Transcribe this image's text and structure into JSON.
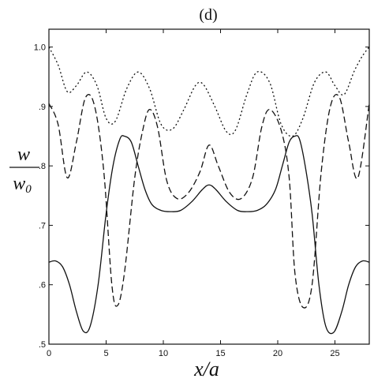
{
  "chart_data": {
    "type": "line",
    "title": "(d)",
    "xlabel": "x/a",
    "ylabel_numerator": "w",
    "ylabel_denominator": "w0",
    "xlim": [
      0,
      28
    ],
    "ylim": [
      0.5,
      1.03
    ],
    "grid": false,
    "legend": "none",
    "x_ticks": [
      0,
      5,
      10,
      15,
      20,
      25
    ],
    "x_tick_labels": [
      "0",
      "5",
      "10",
      "15",
      "20",
      "25"
    ],
    "y_ticks": [
      0.5,
      0.6,
      0.7,
      0.8,
      0.9,
      1.0
    ],
    "y_tick_labels": [
      ".5",
      ".6",
      ".7",
      ".8",
      ".9",
      "1.0"
    ],
    "series": [
      {
        "style": "dotted",
        "x": [
          0,
          0.8,
          1.6,
          2.4,
          3.3,
          4.2,
          5.0,
          5.8,
          6.8,
          7.8,
          8.8,
          9.8,
          10.8,
          11.8,
          12.8,
          13.5,
          14.5,
          15.5,
          16.3,
          17.3,
          18.2,
          19.3,
          20.3,
          21.3,
          22.2,
          23.2,
          24.2,
          25.0,
          25.8,
          26.7,
          27.4,
          28.0
        ],
        "y": [
          1.0,
          0.97,
          0.925,
          0.935,
          0.958,
          0.935,
          0.88,
          0.875,
          0.93,
          0.958,
          0.93,
          0.87,
          0.862,
          0.895,
          0.935,
          0.937,
          0.9,
          0.858,
          0.86,
          0.92,
          0.958,
          0.94,
          0.87,
          0.85,
          0.88,
          0.94,
          0.958,
          0.935,
          0.92,
          0.96,
          0.985,
          1.0
        ]
      },
      {
        "style": "dashed",
        "x": [
          0,
          0.8,
          1.6,
          2.4,
          3.2,
          4.0,
          4.8,
          5.5,
          6.0,
          6.6,
          7.5,
          8.2,
          8.8,
          9.5,
          10.3,
          11.2,
          12.2,
          13.2,
          14.0,
          14.8,
          15.8,
          16.8,
          17.8,
          18.6,
          19.3,
          20.3,
          21.0,
          21.5,
          22.2,
          23.0,
          23.8,
          24.6,
          25.4,
          26.2,
          27.0,
          28.0
        ],
        "y": [
          0.905,
          0.87,
          0.78,
          0.84,
          0.915,
          0.9,
          0.79,
          0.6,
          0.565,
          0.62,
          0.78,
          0.86,
          0.895,
          0.865,
          0.775,
          0.745,
          0.755,
          0.79,
          0.835,
          0.8,
          0.755,
          0.745,
          0.78,
          0.865,
          0.895,
          0.86,
          0.78,
          0.62,
          0.562,
          0.6,
          0.79,
          0.9,
          0.915,
          0.84,
          0.78,
          0.905
        ]
      },
      {
        "style": "solid",
        "x": [
          0,
          0.6,
          1.2,
          1.8,
          2.4,
          3.0,
          3.6,
          4.3,
          5.0,
          5.6,
          6.2,
          6.6,
          7.2,
          7.8,
          8.4,
          9.0,
          9.8,
          10.6,
          11.5,
          12.5,
          13.4,
          14.0,
          14.6,
          15.5,
          16.5,
          17.4,
          18.2,
          19.0,
          19.8,
          20.4,
          21.0,
          21.5,
          21.9,
          22.4,
          23.0,
          23.6,
          24.2,
          24.9,
          25.6,
          26.2,
          26.8,
          27.4,
          28.0
        ],
        "y": [
          0.638,
          0.64,
          0.63,
          0.6,
          0.555,
          0.522,
          0.53,
          0.6,
          0.72,
          0.8,
          0.845,
          0.85,
          0.84,
          0.8,
          0.76,
          0.735,
          0.725,
          0.723,
          0.725,
          0.74,
          0.76,
          0.768,
          0.76,
          0.74,
          0.725,
          0.723,
          0.725,
          0.735,
          0.76,
          0.8,
          0.84,
          0.85,
          0.845,
          0.8,
          0.72,
          0.6,
          0.53,
          0.52,
          0.555,
          0.6,
          0.63,
          0.64,
          0.638
        ]
      }
    ]
  }
}
